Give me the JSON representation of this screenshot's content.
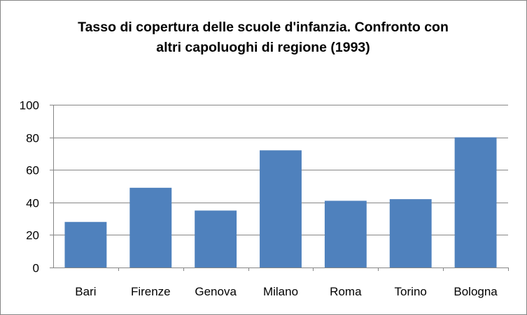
{
  "chart_data": {
    "type": "bar",
    "title_line1": "Tasso di copertura delle scuole d'infanzia. Confronto con",
    "title_line2": "altri capoluoghi di regione (1993)",
    "categories": [
      "Bari",
      "Firenze",
      "Genova",
      "Milano",
      "Roma",
      "Torino",
      "Bologna"
    ],
    "values": [
      28,
      49,
      35,
      72,
      41,
      42,
      80
    ],
    "yticks": [
      0,
      20,
      40,
      60,
      80,
      100
    ],
    "ylim": [
      0,
      100
    ],
    "xlabel": "",
    "ylabel": "",
    "grid": true,
    "legend": "none",
    "bar_color": "#4F81BD",
    "grid_color": "#868686"
  }
}
